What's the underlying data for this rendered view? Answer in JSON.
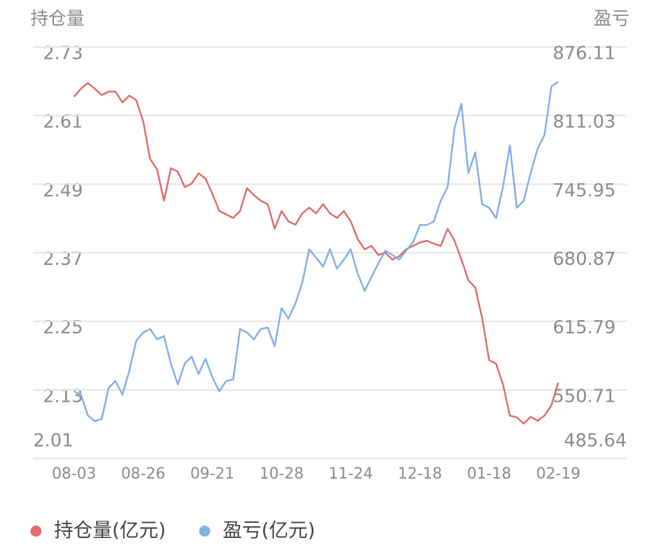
{
  "chart_data": {
    "type": "line",
    "y_label": "持仓量",
    "y2_label": "盈亏",
    "categories": [
      "08-03",
      null,
      null,
      null,
      null,
      null,
      null,
      null,
      null,
      null,
      "08-26",
      null,
      null,
      null,
      null,
      null,
      null,
      null,
      null,
      null,
      "09-21",
      null,
      null,
      null,
      null,
      null,
      null,
      null,
      null,
      null,
      "10-28",
      null,
      null,
      null,
      null,
      null,
      null,
      null,
      null,
      null,
      "11-24",
      null,
      null,
      null,
      null,
      null,
      null,
      null,
      null,
      null,
      "12-18",
      null,
      null,
      null,
      null,
      null,
      null,
      null,
      null,
      null,
      "01-18",
      null,
      null,
      null,
      null,
      null,
      null,
      null,
      null,
      null,
      "02-19"
    ],
    "series": [
      {
        "name": "持仓量(亿元)",
        "color": "#e06c6c",
        "axis": "y",
        "values": [
          2.643,
          2.657,
          2.667,
          2.657,
          2.646,
          2.652,
          2.652,
          2.633,
          2.645,
          2.637,
          2.6,
          2.534,
          2.516,
          2.461,
          2.518,
          2.512,
          2.485,
          2.491,
          2.509,
          2.5,
          2.473,
          2.443,
          2.437,
          2.431,
          2.443,
          2.483,
          2.471,
          2.461,
          2.455,
          2.412,
          2.443,
          2.425,
          2.419,
          2.439,
          2.449,
          2.439,
          2.455,
          2.439,
          2.431,
          2.443,
          2.425,
          2.394,
          2.376,
          2.382,
          2.366,
          2.37,
          2.358,
          2.364,
          2.376,
          2.382,
          2.388,
          2.391,
          2.386,
          2.382,
          2.412,
          2.391,
          2.358,
          2.322,
          2.309,
          2.255,
          2.182,
          2.176,
          2.14,
          2.085,
          2.082,
          2.071,
          2.083,
          2.076,
          2.085,
          2.103,
          2.143
        ]
      },
      {
        "name": "盈亏(亿元)",
        "color": "#7fb0e6",
        "axis": "y2",
        "values": [
          549.4,
          546.11,
          526.39,
          521.13,
          523.1,
          552.68,
          559.26,
          546.11,
          569.12,
          597.39,
          605.27,
          608.56,
          598.7,
          601.99,
          575.69,
          555.97,
          575.69,
          582.27,
          565.83,
          580.29,
          562.54,
          549.4,
          559.26,
          560.57,
          608.56,
          605.27,
          598.7,
          608.56,
          609.88,
          592.13,
          628.28,
          618.42,
          632.88,
          652.6,
          684.16,
          676.27,
          667.72,
          684.16,
          665.75,
          674.3,
          684.16,
          661.15,
          644.72,
          657.86,
          671.01,
          682.84,
          678.9,
          674.3,
          682.84,
          690.73,
          707.17,
          707.17,
          710.45,
          730.17,
          743.32,
          799.2,
          822.21,
          756.47,
          776.19,
          726.89,
          723.6,
          713.74,
          743.32,
          782.76,
          723.6,
          730.17,
          756.47,
          779.48,
          792.62,
          838.64,
          843.24
        ]
      }
    ],
    "ylim": [
      2.01,
      2.73
    ],
    "yticks": [
      2.01,
      2.13,
      2.25,
      2.37,
      2.49,
      2.61,
      2.73
    ],
    "y2lim": [
      485.64,
      876.11
    ],
    "y2ticks": [
      485.64,
      550.71,
      615.79,
      680.87,
      745.95,
      811.03,
      876.11
    ],
    "grid": true
  }
}
